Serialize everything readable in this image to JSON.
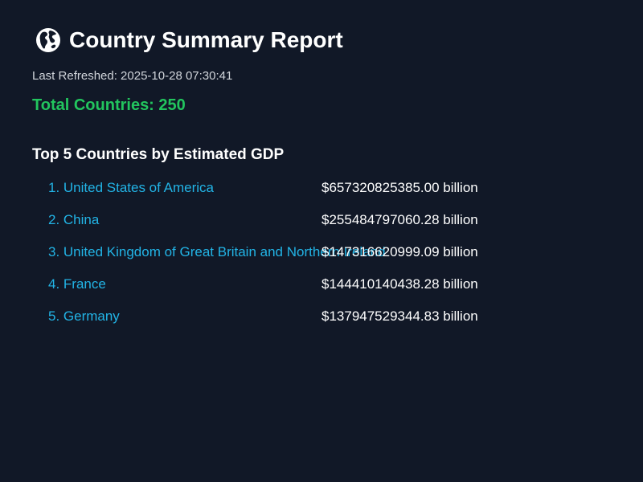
{
  "header": {
    "icon": "globe-africa-icon",
    "title": "Country Summary Report"
  },
  "refreshed": "Last Refreshed: 2025-10-28 07:30:41",
  "total": {
    "label": "Total Countries: ",
    "value": "250",
    "color": "#22c55e"
  },
  "top_section": {
    "heading": "Top 5 Countries by Estimated GDP",
    "items": [
      {
        "rank_name": "1. United States of America",
        "gdp": "$657320825385.00 billion"
      },
      {
        "rank_name": "2. China",
        "gdp": "$255484797060.28 billion"
      },
      {
        "rank_name": "3. United Kingdom of Great Britain and Northern Ireland",
        "gdp": "$147316620999.09 billion"
      },
      {
        "rank_name": "4. France",
        "gdp": "$144410140438.28 billion"
      },
      {
        "rank_name": "5. Germany",
        "gdp": "$137947529344.83 billion"
      }
    ]
  },
  "colors": {
    "background": "#111827",
    "link": "#22b4e6",
    "text": "#ffffff",
    "muted": "#d1d5db"
  }
}
